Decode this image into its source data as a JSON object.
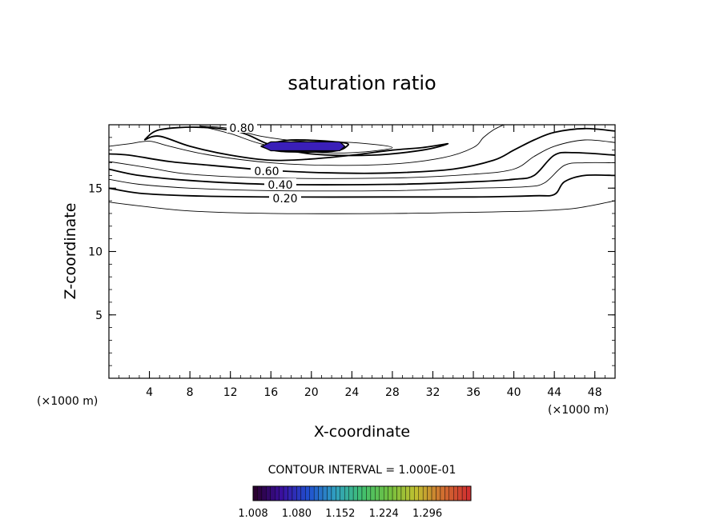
{
  "chart_data": {
    "type": "contour",
    "title": "saturation ratio",
    "xlabel": "X-coordinate",
    "ylabel": "Z-coordinate",
    "x_unit": "(×1000 m)",
    "x_unit_right": "(×1000 m)",
    "xlim": [
      0,
      50
    ],
    "ylim": [
      0,
      20
    ],
    "x_ticks": [
      4,
      8,
      12,
      16,
      20,
      24,
      28,
      32,
      36,
      40,
      44,
      48
    ],
    "y_ticks": [
      5,
      10,
      15
    ],
    "contour_interval_text": "CONTOUR INTERVAL = 1.000E-01",
    "contour_labels": [
      {
        "text": "0.80",
        "value": 0.8
      },
      {
        "text": "0.60",
        "value": 0.6
      },
      {
        "text": "0.40",
        "value": 0.4
      },
      {
        "text": "0.20",
        "value": 0.2
      }
    ],
    "contours": [
      {
        "level": 0.1,
        "points": [
          [
            0,
            13.9
          ],
          [
            3,
            13.6
          ],
          [
            8,
            13.2
          ],
          [
            16,
            13.0
          ],
          [
            28,
            13.0
          ],
          [
            36,
            13.1
          ],
          [
            42,
            13.2
          ],
          [
            46,
            13.4
          ],
          [
            50,
            14.0
          ]
        ]
      },
      {
        "level": 0.2,
        "points": [
          [
            0,
            15.0
          ],
          [
            3,
            14.6
          ],
          [
            8,
            14.4
          ],
          [
            16,
            14.3
          ],
          [
            28,
            14.3
          ],
          [
            36,
            14.3
          ],
          [
            42,
            14.4
          ],
          [
            44,
            14.5
          ],
          [
            45,
            15.5
          ],
          [
            47,
            16.0
          ],
          [
            50,
            16.0
          ]
        ]
      },
      {
        "level": 0.3,
        "points": [
          [
            0,
            15.7
          ],
          [
            3,
            15.3
          ],
          [
            8,
            15.0
          ],
          [
            16,
            14.8
          ],
          [
            28,
            14.8
          ],
          [
            36,
            15.0
          ],
          [
            41,
            15.1
          ],
          [
            43,
            15.4
          ],
          [
            45,
            16.8
          ],
          [
            47,
            17.0
          ],
          [
            50,
            17.0
          ]
        ]
      },
      {
        "level": 0.4,
        "points": [
          [
            0,
            16.5
          ],
          [
            3,
            16.0
          ],
          [
            8,
            15.6
          ],
          [
            16,
            15.3
          ],
          [
            28,
            15.3
          ],
          [
            36,
            15.5
          ],
          [
            40,
            15.7
          ],
          [
            42,
            16.0
          ],
          [
            44,
            17.6
          ],
          [
            46,
            17.8
          ],
          [
            50,
            17.6
          ]
        ]
      },
      {
        "level": 0.5,
        "points": [
          [
            0,
            17.1
          ],
          [
            4,
            16.6
          ],
          [
            8,
            16.1
          ],
          [
            16,
            15.8
          ],
          [
            28,
            15.8
          ],
          [
            36,
            16.1
          ],
          [
            40,
            16.5
          ],
          [
            42,
            17.5
          ],
          [
            44,
            18.3
          ],
          [
            47,
            18.8
          ],
          [
            50,
            18.6
          ]
        ]
      },
      {
        "level": 0.6,
        "points": [
          [
            0,
            17.7
          ],
          [
            2,
            17.6
          ],
          [
            6,
            17.1
          ],
          [
            10,
            16.8
          ],
          [
            16,
            16.4
          ],
          [
            22,
            16.2
          ],
          [
            28,
            16.2
          ],
          [
            34,
            16.5
          ],
          [
            38,
            17.2
          ],
          [
            40,
            18.0
          ],
          [
            42,
            18.8
          ],
          [
            44,
            19.4
          ],
          [
            47,
            19.7
          ],
          [
            50,
            19.5
          ]
        ]
      },
      {
        "level": 0.7,
        "points": [
          [
            0,
            18.3
          ],
          [
            2,
            18.5
          ],
          [
            4,
            18.7
          ],
          [
            6,
            18.3
          ],
          [
            10,
            17.6
          ],
          [
            16,
            17.0
          ],
          [
            22,
            16.8
          ],
          [
            28,
            16.9
          ],
          [
            33,
            17.4
          ],
          [
            36,
            18.2
          ],
          [
            37,
            19.0
          ],
          [
            38,
            19.6
          ],
          [
            39,
            20.0
          ]
        ]
      },
      {
        "level": 0.8,
        "points": [
          [
            3.5,
            18.8
          ],
          [
            5,
            19.6
          ],
          [
            9,
            19.8
          ],
          [
            13,
            19.4
          ],
          [
            16,
            18.4
          ],
          [
            20,
            17.7
          ],
          [
            26,
            17.6
          ],
          [
            31,
            18.0
          ],
          [
            33.5,
            18.5
          ],
          [
            31,
            18.2
          ],
          [
            28,
            18.0
          ],
          [
            24,
            17.6
          ],
          [
            20,
            17.3
          ],
          [
            16,
            17.2
          ],
          [
            12,
            17.6
          ],
          [
            8,
            18.3
          ],
          [
            5,
            19.1
          ],
          [
            3.5,
            18.8
          ]
        ]
      },
      {
        "level": 0.9,
        "points": [
          [
            9,
            19.9
          ],
          [
            12,
            19.3
          ],
          [
            15,
            18.5
          ],
          [
            19,
            17.9
          ],
          [
            24,
            17.8
          ],
          [
            28,
            18.2
          ],
          [
            24,
            18.6
          ],
          [
            19,
            18.7
          ],
          [
            15,
            19.1
          ],
          [
            12,
            19.7
          ],
          [
            9,
            19.9
          ]
        ]
      },
      {
        "level": 1.0,
        "points": [
          [
            15,
            18.3
          ],
          [
            18,
            18.8
          ],
          [
            23,
            18.6
          ],
          [
            23.5,
            18.3
          ],
          [
            22,
            17.9
          ],
          [
            17,
            17.9
          ],
          [
            15,
            18.3
          ]
        ]
      }
    ],
    "filled_region": {
      "level": 1.008,
      "color": "#3a1fb8",
      "points": [
        [
          15.1,
          18.3
        ],
        [
          16,
          18.65
        ],
        [
          22.8,
          18.65
        ],
        [
          23.3,
          18.3
        ],
        [
          22.8,
          17.95
        ],
        [
          16,
          17.95
        ],
        [
          15.1,
          18.3
        ]
      ]
    },
    "colorbar": {
      "ticks": [
        "1.008",
        "1.080",
        "1.152",
        "1.224",
        "1.296"
      ],
      "min": 1.008,
      "max": 1.368,
      "stops": [
        "#2a0030",
        "#3a10a0",
        "#2050d0",
        "#30a0c0",
        "#40c070",
        "#70c040",
        "#c0c030",
        "#d07030",
        "#d03030"
      ]
    }
  }
}
